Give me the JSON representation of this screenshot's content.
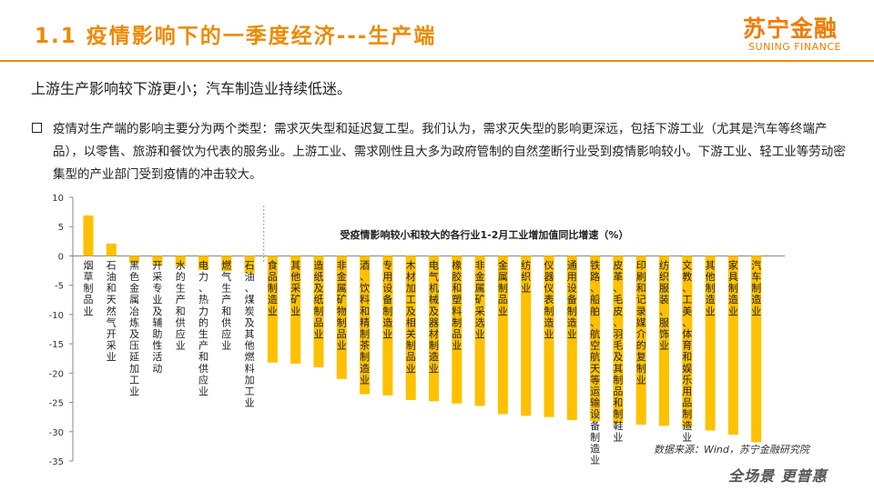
{
  "header": {
    "title": "1.1 疫情影响下的一季度经济---生产端",
    "logo_cn": "苏宁金融",
    "logo_en": "SUNING FINANCE"
  },
  "subtitle": "上游生产影响较下游更小；汽车制造业持续低迷。",
  "paragraph": "疫情对生产端的影响主要分为两个类型：需求灭失型和延迟复工型。我们认为，需求灭失型的影响更深远，包括下游工业（尤其是汽车等终端产品），以零售、旅游和餐饮为代表的服务业。上游工业、需求刚性且大多为政府管制的自然垄断行业受到疫情影响较小。下游工业、轻工业等劳动密集型的产业部门受到疫情的冲击较大。",
  "source": "数据来源：Wind，苏宁金融研究院",
  "footer_logo": "全场景 更普惠",
  "colors": {
    "accent": "#EF8A00",
    "bar": "#FFC000",
    "text": "#222222"
  },
  "chart_data": {
    "type": "bar",
    "title": "受疫情影响较小和较大的各行业1-2月工业增加值同比增速（%）",
    "ylim": [
      -35,
      10
    ],
    "yticks": [
      10,
      5,
      0,
      -5,
      -10,
      -15,
      -20,
      -25,
      -30,
      -35
    ],
    "grid": false,
    "categories": [
      "烟草制品业",
      "石油和天然气开采业",
      "黑色金属冶炼及压延加工业",
      "开采专业及辅助性活动",
      "水的生产和供应业",
      "电力、热力的生产和供应业",
      "燃气生产和供应业",
      "石油、煤炭及其他燃料加工业",
      "食品制造业",
      "其他采矿业",
      "造纸及纸制品业",
      "非金属矿物制品业",
      "酒、饮料和精制茶制造业",
      "专用设备制造业",
      "木材加工及相关制品业",
      "电气机械及器材制造业",
      "橡胶和塑料制品业",
      "非金属矿采选业",
      "金属制品业",
      "纺织业",
      "仪器仪表制造业",
      "通用设备制造业",
      "铁路、船舶、航空航天等运输设备制造业",
      "皮革、毛皮、羽毛及其制品和制鞋业",
      "印刷和记录媒介的复制业",
      "纺织服装、服饰业",
      "文教、工美、体育和娱乐用品制造业",
      "其他制造业",
      "家具制造业",
      "汽车制造业"
    ],
    "values": [
      6.9,
      2.1,
      -1.2,
      -1.6,
      -1.8,
      -2.4,
      -2.6,
      -3.0,
      -18.2,
      -18.4,
      -19.0,
      -21.0,
      -23.6,
      -23.8,
      -24.6,
      -24.8,
      -25.2,
      -25.6,
      -27.0,
      -27.3,
      -27.5,
      -28.0,
      -28.2,
      -28.6,
      -28.8,
      -29.0,
      -29.3,
      -29.8,
      -30.5,
      -31.8
    ]
  }
}
